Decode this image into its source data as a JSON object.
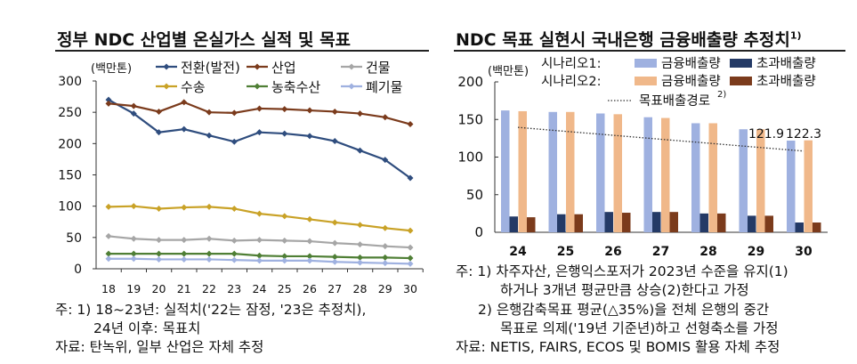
{
  "left": {
    "title": "정부 NDC 산업별 온실가스 실적 및 목표",
    "notes": [
      "주: 1)  18~23년: 실적치('22는 잠정, '23은 추정치),",
      "24년 이후: 목표치",
      "자료: 탄녹위, 일부 산업은 자체 추정"
    ]
  },
  "right": {
    "title": "NDC 목표 실현시 국내은행 금융배출량 추정치",
    "title_sup": "1)",
    "notes": [
      "주: 1) 차주자산, 은행익스포저가 2023년 수준을 유지(1)",
      "하거나 3개년 평균만큼 상승(2)한다고 가정",
      "2) 은행감축목표 평균(△35%)을 전체 은행의 중간",
      "목표로 의제('19년 기준년)하고 선형축소를 가정",
      "자료: NETIS, FAIRS, ECOS 및 BOMIS 활용 자체 추정"
    ]
  },
  "chart_data": [
    {
      "type": "line",
      "ylabel": "(백만톤)",
      "ylim": [
        0,
        300
      ],
      "yticks": [
        0,
        50,
        100,
        150,
        200,
        250,
        300
      ],
      "categories": [
        "18",
        "19",
        "20",
        "21",
        "22",
        "23",
        "24",
        "25",
        "26",
        "27",
        "28",
        "29",
        "30"
      ],
      "grid": false,
      "legend": "top",
      "series": [
        {
          "name": "전환(발전)",
          "color": "#2f4d7e",
          "values": [
            270,
            248,
            218,
            223,
            213,
            203,
            218,
            216,
            212,
            204,
            189,
            174,
            145
          ]
        },
        {
          "name": "산업",
          "color": "#7b3b1c",
          "values": [
            264,
            260,
            251,
            266,
            250,
            249,
            256,
            255,
            253,
            251,
            248,
            242,
            231
          ]
        },
        {
          "name": "건물",
          "color": "#a6a6a6",
          "values": [
            52,
            48,
            46,
            46,
            48,
            45,
            46,
            45,
            44,
            41,
            39,
            36,
            34
          ]
        },
        {
          "name": "수송",
          "color": "#c9a227",
          "values": [
            99,
            100,
            96,
            98,
            99,
            96,
            88,
            84,
            79,
            74,
            70,
            65,
            61
          ]
        },
        {
          "name": "농축수산",
          "color": "#4f7f35",
          "values": [
            24,
            24,
            24,
            24,
            24,
            24,
            21,
            20,
            20,
            19,
            18,
            18,
            17
          ]
        },
        {
          "name": "폐기물",
          "color": "#9fb1e0",
          "values": [
            16,
            16,
            15,
            15,
            15,
            14,
            13,
            13,
            13,
            11,
            10,
            9,
            8
          ]
        }
      ]
    },
    {
      "type": "bar",
      "ylabel": "(백만톤)",
      "ylim": [
        0,
        200
      ],
      "yticks": [
        0,
        50,
        100,
        150,
        200
      ],
      "categories": [
        "24",
        "25",
        "26",
        "27",
        "28",
        "29",
        "30"
      ],
      "grid": false,
      "legend": "top",
      "scenario_labels": [
        "시나리오1:",
        "시나리오2:"
      ],
      "series": [
        {
          "name": "금융배출량",
          "scenario": 1,
          "color": "#9fb1e0",
          "values": [
            162,
            160,
            158,
            153,
            145,
            137,
            121.9
          ]
        },
        {
          "name": "초과배출량",
          "scenario": 1,
          "color": "#243a66",
          "values": [
            21,
            24,
            27,
            27,
            25,
            22,
            13
          ]
        },
        {
          "name": "금융배출량",
          "scenario": 2,
          "color": "#f0b88a",
          "values": [
            161,
            160,
            157,
            152,
            145,
            137,
            122.3
          ]
        },
        {
          "name": "초과배출량",
          "scenario": 2,
          "color": "#7b3b1c",
          "values": [
            20,
            24,
            26,
            27,
            25,
            22,
            13
          ]
        }
      ],
      "target_line": {
        "name": "목표배출경로",
        "sup": "2)",
        "values": [
          139.5,
          134.2,
          129,
          123.7,
          118.5,
          113.2,
          108
        ]
      },
      "data_labels": [
        "121.9",
        "122.3"
      ]
    }
  ]
}
